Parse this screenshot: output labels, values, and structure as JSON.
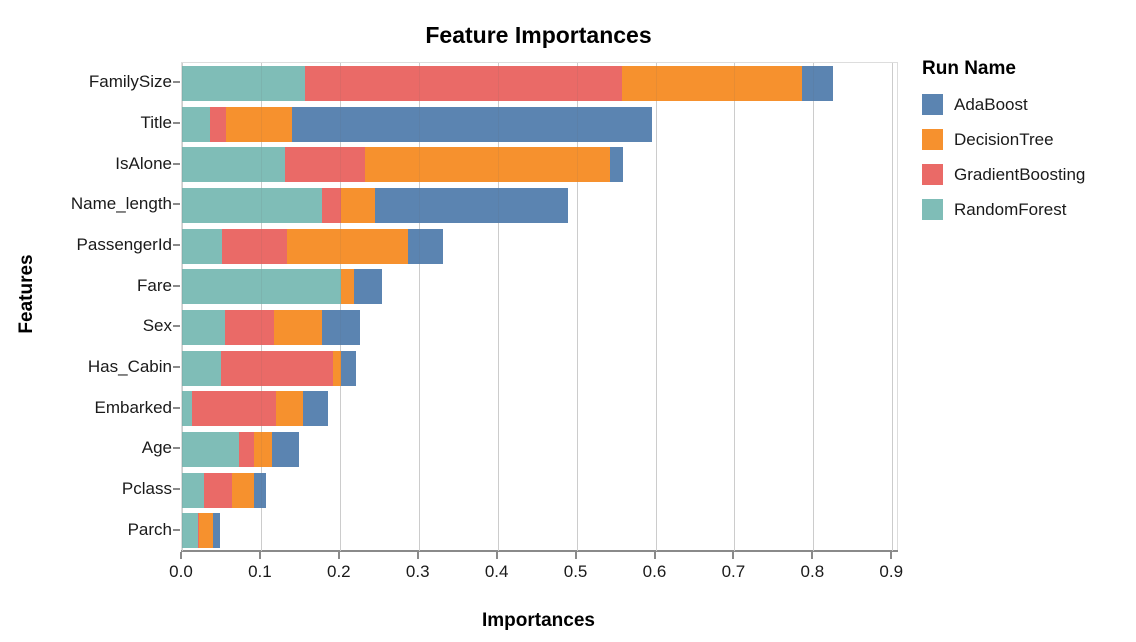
{
  "page": {
    "background": "#ffffff",
    "text_color": "#1a1a1a",
    "axis_color": "#8a8a8a",
    "grid_color": "#d9d9d9"
  },
  "chart_data": {
    "type": "bar",
    "stacked": true,
    "orientation": "horizontal",
    "title": "Feature Importances",
    "xlabel": "Importances",
    "ylabel": "Features",
    "grid": true,
    "legend_position": "right",
    "legend_title": "Run Name",
    "legend_order": [
      "AdaBoost",
      "DecisionTree",
      "GradientBoosting",
      "RandomForest"
    ],
    "xlim": [
      0,
      0.906
    ],
    "x_ticks": [
      0.0,
      0.1,
      0.2,
      0.3,
      0.4,
      0.5,
      0.6,
      0.7,
      0.8,
      0.9
    ],
    "x_tick_labels": [
      "0.0",
      "0.1",
      "0.2",
      "0.3",
      "0.4",
      "0.5",
      "0.6",
      "0.7",
      "0.8",
      "0.9"
    ],
    "categories": [
      "FamilySize",
      "Title",
      "IsAlone",
      "Name_length",
      "PassengerId",
      "Fare",
      "Sex",
      "Has_Cabin",
      "Embarked",
      "Age",
      "Pclass",
      "Parch"
    ],
    "stack_order_note": "segments drawn left-to-right in series array order",
    "series": [
      {
        "name": "RandomForest",
        "color": "#7fbdb7",
        "values": [
          0.156,
          0.036,
          0.131,
          0.177,
          0.051,
          0.202,
          0.054,
          0.05,
          0.013,
          0.072,
          0.028,
          0.02
        ]
      },
      {
        "name": "GradientBoosting",
        "color": "#ea6a67",
        "values": [
          0.401,
          0.02,
          0.101,
          0.025,
          0.082,
          0.0,
          0.063,
          0.141,
          0.106,
          0.019,
          0.035,
          0.002
        ]
      },
      {
        "name": "DecisionTree",
        "color": "#f6912e",
        "values": [
          0.229,
          0.084,
          0.31,
          0.043,
          0.153,
          0.016,
          0.06,
          0.01,
          0.034,
          0.023,
          0.028,
          0.017
        ]
      },
      {
        "name": "AdaBoost",
        "color": "#5b84b1",
        "values": [
          0.039,
          0.456,
          0.017,
          0.244,
          0.045,
          0.035,
          0.048,
          0.02,
          0.032,
          0.034,
          0.015,
          0.009
        ]
      }
    ],
    "totals": [
      0.825,
      0.596,
      0.559,
      0.489,
      0.331,
      0.253,
      0.225,
      0.221,
      0.185,
      0.148,
      0.106,
      0.048
    ]
  }
}
